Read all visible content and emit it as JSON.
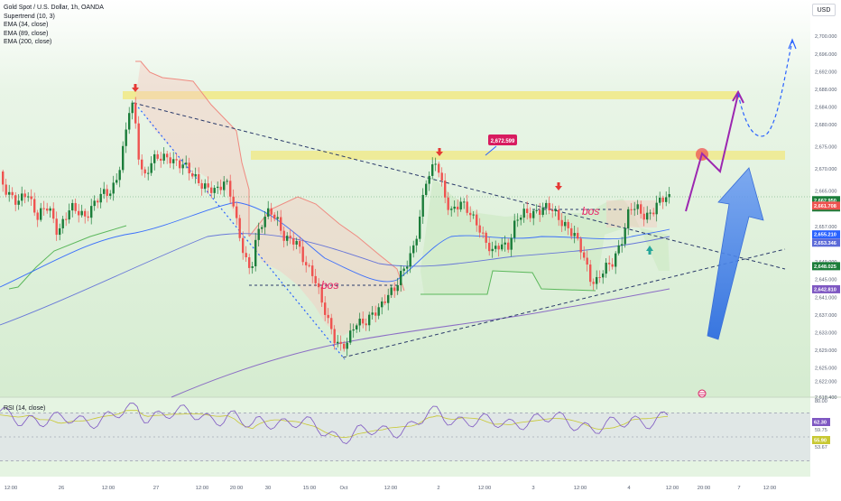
{
  "symbol_title": "Gold Spot / U.S. Dollar, 1h, OANDA",
  "indicators": [
    "Supertrend (10, 3)",
    "EMA (34, close)",
    "EMA (89, close)",
    "EMA (200, close)"
  ],
  "currency_button": "USD",
  "rsi_label": "RSI (14, close)",
  "colors": {
    "up": "#1b7d3a",
    "down": "#ef5350",
    "ema34": "#2962ff",
    "ema89": "#5b6ad8",
    "ema200": "#7e57c2",
    "zone": "#f5e45c",
    "arrow_purple": "#9c27b0",
    "arrow_blue": "#4a7fe6"
  },
  "chart_data": {
    "type": "candlestick",
    "y_axis": {
      "range": [
        2618.4,
        2702.5
      ],
      "tick_labels": [
        "2,700.000",
        "2,696.000",
        "2,692.000",
        "2,688.000",
        "2,684.000",
        "2,680.000",
        "2,675.000",
        "2,670.000",
        "2,665.000",
        "2,661.000",
        "2,657.000",
        "2,653.000",
        "2,649.000",
        "2,645.000",
        "2,641.000",
        "2,637.000",
        "2,633.000",
        "2,629.000",
        "2,625.000",
        "2,622.000",
        "2,618.400"
      ]
    },
    "x_axis": {
      "tick_labels": [
        "12:00",
        "26",
        "12:00",
        "27",
        "12:00",
        "20:00",
        "30",
        "15:00",
        "Oct",
        "12:00",
        "2",
        "12:00",
        "3",
        "12:00",
        "4",
        "12:00",
        "20:00",
        "7",
        "12:00"
      ]
    },
    "price_labels": [
      {
        "text": "2,662.950",
        "color": "#1b7d3a"
      },
      {
        "text": "28:39",
        "color": "#1b7d3a"
      },
      {
        "text": "2,661.708",
        "color": "#ef5350"
      },
      {
        "text": "2,655.210",
        "color": "#2962ff"
      },
      {
        "text": "2,653.346",
        "color": "#5b6ad8"
      },
      {
        "text": "2,648.025",
        "color": "#1b7d3a"
      },
      {
        "text": "2,642.810",
        "color": "#7e57c2"
      }
    ],
    "annotations": [
      {
        "type": "callout",
        "text": "2,672.599"
      },
      {
        "type": "text",
        "text": "bos"
      },
      {
        "type": "text",
        "text": "bos"
      }
    ],
    "rsi": {
      "tick_labels": [
        "80.00",
        "59.75",
        "53.67"
      ],
      "value_labels": [
        {
          "text": "62.30",
          "color": "#7e57c2"
        },
        {
          "text": "55.90",
          "color": "#c8c832"
        }
      ]
    }
  }
}
